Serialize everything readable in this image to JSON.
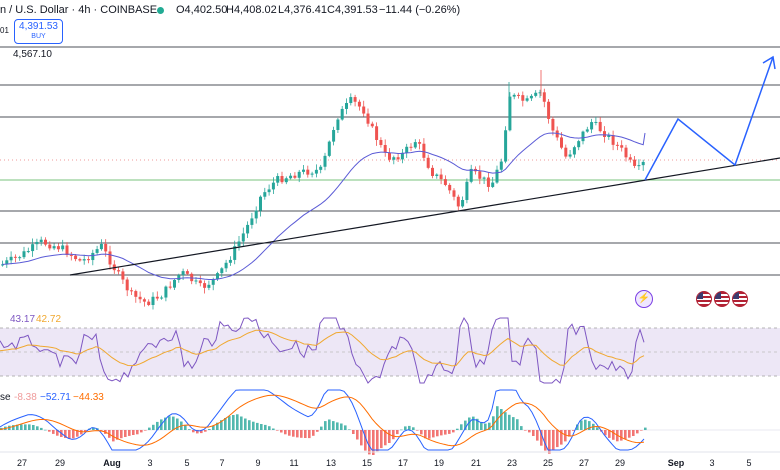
{
  "header": {
    "symbol": "n / U.S. Dollar · 4h · COINBASE",
    "open": "O4,402.50",
    "high": "H4,408.02",
    "low": "L4,376.41",
    "close": "C4,391.53",
    "change": "−11.44 (−0.26%)",
    "buy_price": "4,391.53",
    "buy_label": "BUY",
    "left_mark": "01",
    "level_label": "4,567.10"
  },
  "colors": {
    "up": "#26a69a",
    "down": "#ef5350",
    "ma": "#5b5bd6",
    "trend": "#131722",
    "projection": "#2962ff",
    "rsi_fill": "#ede7f6",
    "rsi_line": "#7e57c2",
    "rsi_ma": "#f0a830",
    "macd": "#2962ff",
    "signal": "#ff6d00"
  },
  "rsi": {
    "value": "43.17",
    "ma_value": "42.72"
  },
  "macd": {
    "name_suffix": "se",
    "hist": "-8.38",
    "macd": "−52.71",
    "signal": "−44.33"
  },
  "events": {
    "icon": "event-icon",
    "flags": 3
  },
  "x_axis": [
    "27",
    "29",
    "Aug",
    "3",
    "5",
    "7",
    "9",
    "11",
    "13",
    "15",
    "17",
    "19",
    "21",
    "23",
    "25",
    "27",
    "29",
    "Sep",
    "3",
    "5"
  ]
}
